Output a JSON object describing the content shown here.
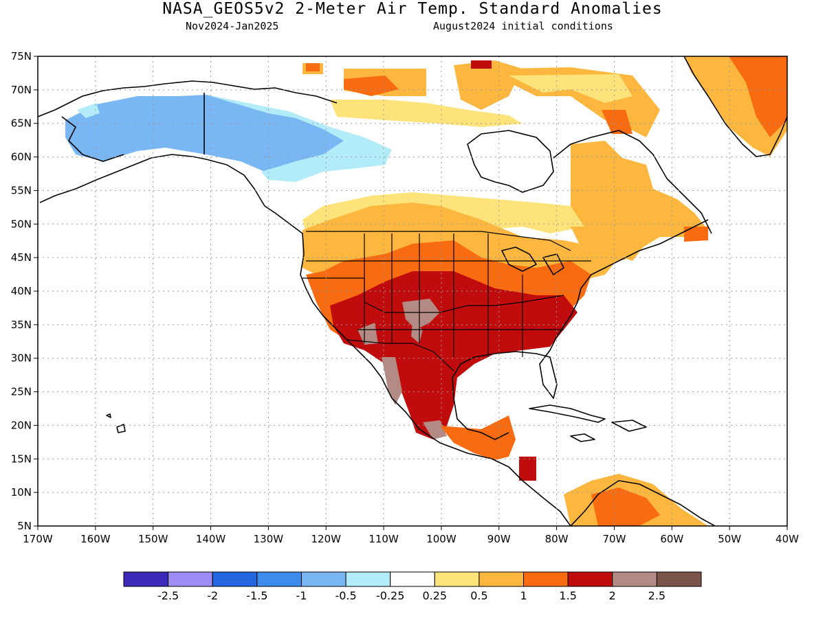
{
  "header": {
    "title": "NASA_GEOS5v2 2-Meter Air Temp. Standard Anomalies",
    "period": "Nov2024-Jan2025",
    "init": "August2024 initial conditions"
  },
  "map": {
    "projection": "equirectangular",
    "lon_range": [
      -170,
      -40
    ],
    "lat_range": [
      5,
      75
    ],
    "lat_labels": [
      "75N",
      "70N",
      "65N",
      "60N",
      "55N",
      "50N",
      "45N",
      "40N",
      "35N",
      "30N",
      "25N",
      "20N",
      "15N",
      "10N",
      "5N"
    ],
    "lon_labels": [
      "170W",
      "160W",
      "150W",
      "140W",
      "130W",
      "120W",
      "110W",
      "100W",
      "90W",
      "80W",
      "70W",
      "60W",
      "50W",
      "40W"
    ],
    "grid": "dotted"
  },
  "colorbar": {
    "colors": [
      "#3b2ab8",
      "#a08cf5",
      "#2466e0",
      "#3d8cec",
      "#78b6f4",
      "#b2ecf8",
      "#ffffff",
      "#fee27a",
      "#fdb73e",
      "#f96b10",
      "#c00c0c",
      "#b38b84",
      "#7a544a"
    ],
    "labels": [
      "-2.5",
      "-2",
      "-1.5",
      "-1",
      "-0.5",
      "-0.25",
      "0.25",
      "0.5",
      "1",
      "1.5",
      "2",
      "2.5"
    ]
  }
}
